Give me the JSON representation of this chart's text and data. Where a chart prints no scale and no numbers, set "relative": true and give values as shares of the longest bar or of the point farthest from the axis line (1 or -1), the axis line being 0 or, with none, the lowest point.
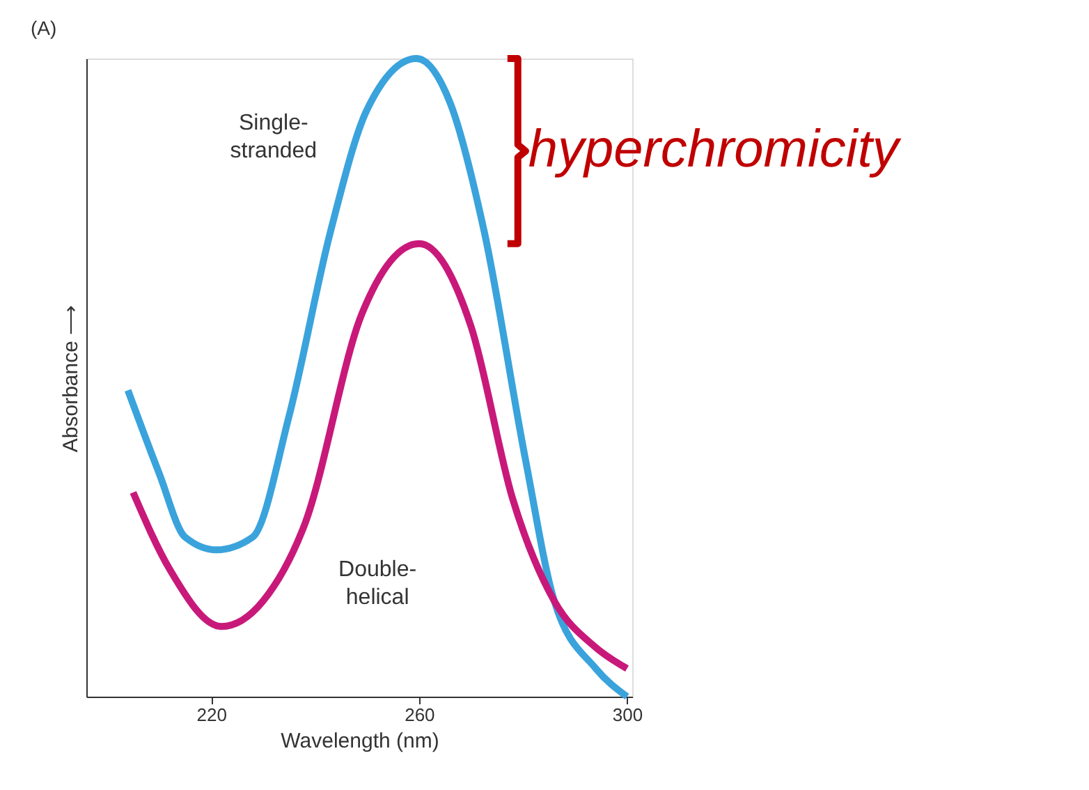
{
  "chart_data": {
    "type": "line",
    "relative": true,
    "xlabel": "Wavelength (nm)",
    "ylabel": "Absorbance ⟶",
    "xlim": [
      196,
      301
    ],
    "xticks": [
      220,
      260,
      300
    ],
    "grid": false,
    "line_style": "solid",
    "marker": "none",
    "series": [
      {
        "name": "Single-stranded",
        "color": "#3aa3dc",
        "x": [
          204,
          210,
          215,
          221,
          228,
          235,
          243,
          250,
          259.5,
          266,
          272.5,
          280.5,
          286,
          294,
          300
        ],
        "values": [
          0.48,
          0.35,
          0.25,
          0.23,
          0.25,
          0.44,
          0.73,
          0.92,
          1.0,
          0.93,
          0.73,
          0.37,
          0.15,
          0.044,
          0
        ]
      },
      {
        "name": "Double-helical",
        "color": "#c8197a",
        "x": [
          205,
          212,
          222,
          230,
          238,
          249,
          260,
          270,
          278,
          286,
          294,
          300
        ],
        "values": [
          0.32,
          0.2,
          0.11,
          0.15,
          0.27,
          0.6,
          0.71,
          0.58,
          0.31,
          0.15,
          0.077,
          0.044
        ]
      }
    ],
    "annotations": [
      "(A)",
      "hyperchromicity"
    ]
  }
}
